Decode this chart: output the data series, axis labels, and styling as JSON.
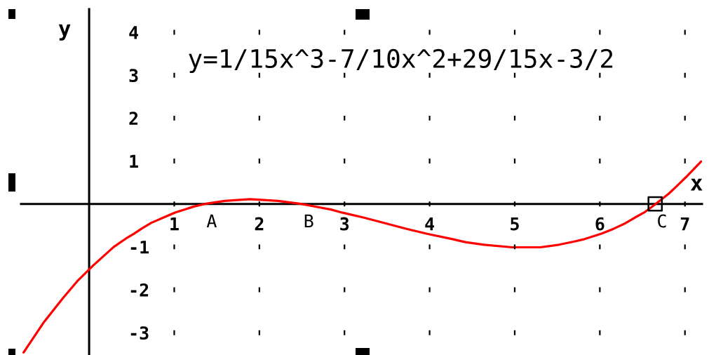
{
  "chart_data": {
    "type": "line",
    "title": "y=1/15x^3-7/10x^2+29/15x-3/2",
    "xlabel": "x",
    "ylabel": "y",
    "xlim": [
      -0.8,
      7.2
    ],
    "ylim": [
      -3.52,
      4.54
    ],
    "xticks": [
      1,
      2,
      3,
      4,
      5,
      6,
      7
    ],
    "yticks": [
      -3,
      -2,
      -1,
      1,
      2,
      3,
      4
    ],
    "grid": true,
    "series": [
      {
        "color": "#ff0000",
        "x": [
          -0.77,
          -0.53,
          -0.31,
          -0.13,
          0.05,
          0.29,
          0.43,
          0.53,
          0.62,
          0.73,
          0.87,
          1.01,
          1.12,
          1.23,
          1.36,
          1.59,
          1.89,
          2.22,
          2.49,
          2.68,
          2.84,
          2.97,
          3.23,
          3.48,
          3.73,
          3.98,
          4.27,
          4.42,
          4.64,
          4.97,
          5.3,
          5.52,
          5.69,
          5.82,
          5.93,
          6.02,
          6.16,
          6.3,
          6.41,
          6.52,
          6.61,
          6.7,
          6.81,
          6.89,
          7.01,
          7.19
        ],
        "values": [
          -3.46,
          -2.75,
          -2.2,
          -1.78,
          -1.43,
          -1.0,
          -0.81,
          -0.69,
          -0.57,
          -0.44,
          -0.32,
          -0.2,
          -0.13,
          -0.06,
          0.0,
          0.07,
          0.11,
          0.07,
          0.0,
          -0.07,
          -0.13,
          -0.2,
          -0.32,
          -0.45,
          -0.58,
          -0.7,
          -0.82,
          -0.89,
          -0.95,
          -1.01,
          -1.01,
          -0.95,
          -0.88,
          -0.82,
          -0.75,
          -0.69,
          -0.58,
          -0.45,
          -0.32,
          -0.2,
          -0.07,
          0.07,
          0.24,
          0.39,
          0.62,
          0.99
        ]
      },
      {
        "type": "scatter",
        "color": "#000000",
        "marker": "square",
        "x": [
          6.65
        ],
        "values": [
          0
        ]
      }
    ],
    "annotations": [
      {
        "text": "A",
        "x": 1.36,
        "y": 0
      },
      {
        "text": "B",
        "x": 2.5,
        "y": 0
      },
      {
        "text": "C",
        "x": 6.65,
        "y": 0
      }
    ]
  }
}
